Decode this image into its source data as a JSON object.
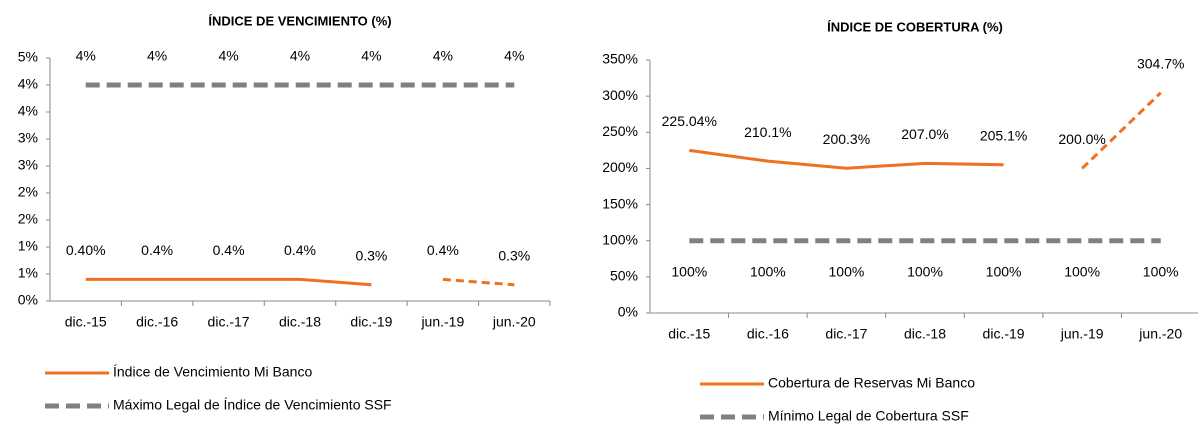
{
  "chart_data": [
    {
      "type": "line",
      "title": "ÍNDICE DE VENCIMIENTO (%)",
      "categories": [
        "dic.-15",
        "dic.-16",
        "dic.-17",
        "dic.-18",
        "dic.-19",
        "jun.-19",
        "jun.-20"
      ],
      "ylim": [
        0,
        4.5
      ],
      "yticks": [
        {
          "value": 0,
          "label": "0%"
        },
        {
          "value": 0.5,
          "label": "1%"
        },
        {
          "value": 1,
          "label": "1%"
        },
        {
          "value": 1.5,
          "label": "2%"
        },
        {
          "value": 2,
          "label": "2%"
        },
        {
          "value": 2.5,
          "label": "3%"
        },
        {
          "value": 3,
          "label": "3%"
        },
        {
          "value": 3.5,
          "label": "4%"
        },
        {
          "value": 4,
          "label": "4%"
        },
        {
          "value": 4.5,
          "label": "5%"
        }
      ],
      "series": [
        {
          "name": "Índice de Vencimiento Mi Banco",
          "color": "#f07020",
          "style": "solid",
          "values": [
            0.4,
            0.4,
            0.4,
            0.4,
            0.3,
            0.4,
            0.3
          ],
          "value_labels": [
            "0.40%",
            "0.4%",
            "0.4%",
            "0.4%",
            "0.3%",
            "0.4%",
            "0.3%"
          ],
          "dashed": [
            false,
            false,
            false,
            false,
            false,
            true,
            true
          ],
          "label_position": "above"
        },
        {
          "name": "Máximo Legal de Índice de Vencimiento SSF",
          "color": "#808080",
          "style": "dashed",
          "values": [
            4,
            4,
            4,
            4,
            4,
            4,
            4
          ],
          "value_labels": [
            "4%",
            "4%",
            "4%",
            "4%",
            "4%",
            "4%",
            "4%"
          ],
          "dashed": [
            true,
            true,
            true,
            true,
            true,
            true,
            true
          ],
          "label_position": "above"
        }
      ]
    },
    {
      "type": "line",
      "title": "ÍNDICE DE COBERTURA (%)",
      "categories": [
        "dic.-15",
        "dic.-16",
        "dic.-17",
        "dic.-18",
        "dic.-19",
        "jun.-19",
        "jun.-20"
      ],
      "ylim": [
        0,
        350
      ],
      "yticks": [
        {
          "value": 0,
          "label": "0%"
        },
        {
          "value": 50,
          "label": "50%"
        },
        {
          "value": 100,
          "label": "100%"
        },
        {
          "value": 150,
          "label": "150%"
        },
        {
          "value": 200,
          "label": "200%"
        },
        {
          "value": 250,
          "label": "250%"
        },
        {
          "value": 300,
          "label": "300%"
        },
        {
          "value": 350,
          "label": "350%"
        }
      ],
      "series": [
        {
          "name": "Cobertura de Reservas Mi Banco",
          "color": "#f07020",
          "style": "solid",
          "values": [
            225.04,
            210.1,
            200.3,
            207.0,
            205.1,
            200.0,
            304.7
          ],
          "value_labels": [
            "225.04%",
            "210.1%",
            "200.3%",
            "207.0%",
            "205.1%",
            "200.0%",
            "304.7%"
          ],
          "dashed": [
            false,
            false,
            false,
            false,
            false,
            true,
            true
          ],
          "label_position": "above"
        },
        {
          "name": "Mínimo Legal de Cobertura SSF",
          "color": "#808080",
          "style": "dashed",
          "values": [
            100,
            100,
            100,
            100,
            100,
            100,
            100
          ],
          "value_labels": [
            "100%",
            "100%",
            "100%",
            "100%",
            "100%",
            "100%",
            "100%"
          ],
          "dashed": [
            true,
            true,
            true,
            true,
            true,
            true,
            true
          ],
          "label_position": "below"
        }
      ]
    }
  ]
}
